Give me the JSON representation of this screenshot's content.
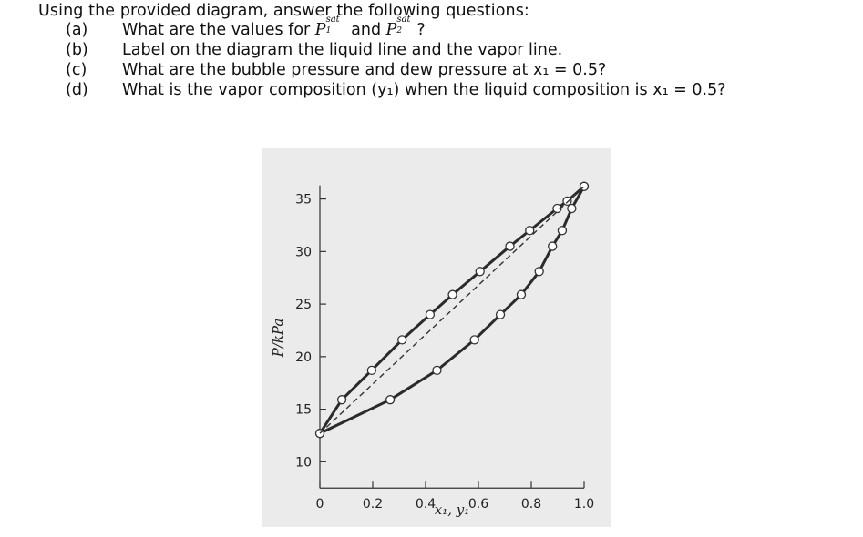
{
  "problem": {
    "title": "Using the provided diagram, answer the following questions:",
    "q_a": {
      "label": "(a)",
      "text_before": "What are the values for ",
      "p1_symbol": "P",
      "p1_super": "sat",
      "p1_sub": "1",
      "and": " and ",
      "p2_symbol": "P",
      "p2_super": "sat",
      "p2_sub": "2",
      "text_after": "?"
    },
    "q_b": {
      "label": "(b)",
      "text": "Label on the diagram the liquid line and the vapor line."
    },
    "q_c": {
      "label": "(c)",
      "text": "What are the bubble pressure and dew pressure at x₁ = 0.5?"
    },
    "q_d": {
      "label": "(d)",
      "text": "What is the vapor composition (y₁) when the liquid composition is x₁ = 0.5?"
    }
  },
  "chart_data": {
    "type": "line",
    "xlabel": "x₁, y₁",
    "ylabel": "P/kPa",
    "xlim": [
      0,
      1
    ],
    "ylim": [
      7,
      37
    ],
    "x_ticks": [
      0,
      0.2,
      0.4,
      0.6,
      0.8,
      1.0
    ],
    "x_tick_labels": [
      "0",
      "0.2",
      "0.4",
      "0.6",
      "0.8",
      "1.0"
    ],
    "y_ticks": [
      10,
      15,
      20,
      25,
      30,
      35
    ],
    "y_tick_labels": [
      "10",
      "15",
      "20",
      "25",
      "30",
      "35"
    ],
    "grid": false,
    "background": "#ebebeb",
    "series": [
      {
        "style": "solid-with-markers",
        "x": [
          0.0,
          0.083,
          0.196,
          0.311,
          0.417,
          0.502,
          0.606,
          0.719,
          0.794,
          0.898,
          0.936,
          1.0
        ],
        "y": [
          12.7,
          15.9,
          18.7,
          21.6,
          24.0,
          25.9,
          28.1,
          30.5,
          32.0,
          34.1,
          34.8,
          36.2
        ]
      },
      {
        "style": "solid-with-markers",
        "x": [
          0.0,
          0.266,
          0.443,
          0.585,
          0.683,
          0.762,
          0.83,
          0.88,
          0.917,
          0.953,
          1.0
        ],
        "y": [
          12.7,
          15.9,
          18.7,
          21.6,
          24.0,
          25.9,
          28.1,
          30.5,
          32.0,
          34.1,
          36.2
        ]
      },
      {
        "style": "dashed",
        "x": [
          0.0,
          1.0
        ],
        "y": [
          12.7,
          36.2
        ]
      }
    ]
  }
}
